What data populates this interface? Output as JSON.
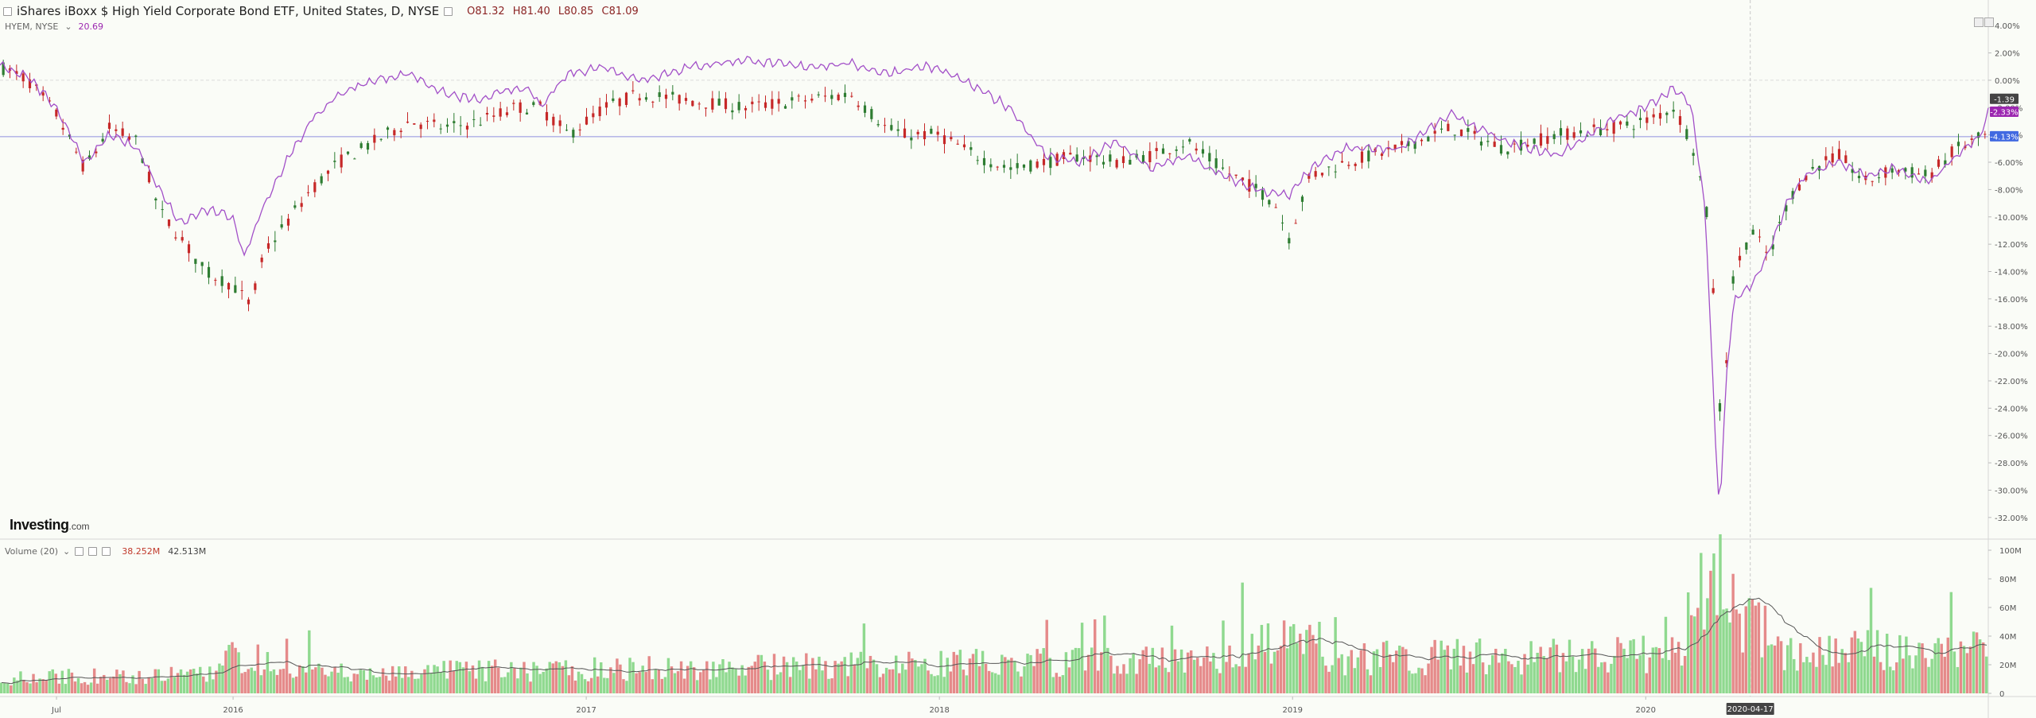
{
  "header": {
    "title": "iShares iBoxx $ High Yield Corporate Bond ETF, United States, D, NYSE",
    "open": "O81.32",
    "high": "H81.40",
    "low": "L80.85",
    "close": "C81.09"
  },
  "compare": {
    "symbol": "HYEM, NYSE",
    "value": "20.69"
  },
  "volume_legend": {
    "label": "Volume (20)",
    "value1": "38.252M",
    "value2": "42.513M"
  },
  "logo": {
    "brand": "Investing",
    "suffix": ".com"
  },
  "colors": {
    "up": "#2e7d32",
    "down": "#c62828",
    "compare_line": "#a24fc8",
    "vol_up": "#8fd98f",
    "vol_down": "#e58a8a",
    "vol_ma": "#555555",
    "ref_line": "#8f8fe0",
    "crosshair": "#c8c8c8"
  },
  "chart_data": [
    {
      "type": "line",
      "title": "iShares iBoxx $ High Yield Corporate Bond ETF",
      "y_scale": "percent change",
      "ylim": [
        -33,
        5
      ],
      "yticks": [
        "4.00%",
        "2.00%",
        "0.00%",
        "-2.00%",
        "-4.00%",
        "-6.00%",
        "-8.00%",
        "-10.00%",
        "-12.00%",
        "-14.00%",
        "-16.00%",
        "-18.00%",
        "-20.00%",
        "-22.00%",
        "-24.00%",
        "-26.00%",
        "-28.00%",
        "-30.00%",
        "-32.00%"
      ],
      "x_tick_labels": [
        "Jul",
        "2016",
        "2017",
        "2018",
        "2019",
        "2020"
      ],
      "x_tick_positions": [
        2015.5,
        2016.0,
        2017.0,
        2018.0,
        2019.0,
        2020.0
      ],
      "xlim": [
        2015.34,
        2020.97
      ],
      "crosshair_label": "2020-04-17",
      "crosshair_x": 2020.296,
      "badges": [
        {
          "label": "-1.39",
          "value": -1.39,
          "color": "#444444"
        },
        {
          "label": "-2.33%",
          "value": -2.33,
          "color": "#9c27b0"
        },
        {
          "label": "-4.13%",
          "value": -4.13,
          "color": "#4169e1"
        }
      ],
      "ref_line_value": -4.13,
      "series": [
        {
          "role": "candles",
          "x": [
            2015.34,
            2015.42,
            2015.5,
            2015.58,
            2015.65,
            2015.73,
            2015.79,
            2015.85,
            2015.92,
            2016.0,
            2016.05,
            2016.09,
            2016.15,
            2016.22,
            2016.3,
            2016.4,
            2016.5,
            2016.6,
            2016.7,
            2016.8,
            2016.87,
            2016.95,
            2017.05,
            2017.15,
            2017.3,
            2017.45,
            2017.6,
            2017.75,
            2017.85,
            2017.9,
            2018.0,
            2018.1,
            2018.2,
            2018.3,
            2018.4,
            2018.5,
            2018.6,
            2018.7,
            2018.8,
            2018.9,
            2018.95,
            2018.99,
            2019.05,
            2019.15,
            2019.3,
            2019.45,
            2019.6,
            2019.75,
            2019.9,
            2020.0,
            2020.08,
            2020.13,
            2020.17,
            2020.2,
            2020.21,
            2020.23,
            2020.25,
            2020.3,
            2020.35,
            2020.4,
            2020.45,
            2020.5,
            2020.55,
            2020.62,
            2020.7,
            2020.8,
            2020.88,
            2020.95,
            2020.97
          ],
          "values": [
            1.0,
            0.0,
            -2.5,
            -6.5,
            -3.5,
            -4.5,
            -9.5,
            -11.5,
            -14.0,
            -15.0,
            -16.5,
            -12.5,
            -10.5,
            -8.0,
            -6.0,
            -4.5,
            -3.0,
            -3.5,
            -3.0,
            -2.0,
            -2.0,
            -4.0,
            -2.0,
            -1.0,
            -1.5,
            -2.0,
            -1.5,
            -1.0,
            -3.5,
            -4.0,
            -4.0,
            -5.5,
            -6.5,
            -6.0,
            -5.5,
            -6.0,
            -5.5,
            -4.5,
            -6.5,
            -8.0,
            -9.0,
            -11.5,
            -7.0,
            -6.0,
            -5.0,
            -3.5,
            -5.0,
            -4.0,
            -3.5,
            -3.0,
            -2.0,
            -4.5,
            -9.0,
            -18.0,
            -24.0,
            -20.0,
            -14.0,
            -11.0,
            -13.0,
            -9.0,
            -7.0,
            -6.0,
            -5.5,
            -7.5,
            -6.5,
            -7.0,
            -5.0,
            -4.2,
            -4.0
          ]
        },
        {
          "name": "HYEM, NYSE",
          "role": "compare",
          "x": [
            2015.34,
            2015.42,
            2015.5,
            2015.58,
            2015.65,
            2015.73,
            2015.79,
            2015.85,
            2015.92,
            2016.0,
            2016.03,
            2016.08,
            2016.15,
            2016.22,
            2016.3,
            2016.4,
            2016.5,
            2016.6,
            2016.7,
            2016.8,
            2016.85,
            2016.87,
            2016.95,
            2017.05,
            2017.15,
            2017.3,
            2017.45,
            2017.6,
            2017.75,
            2017.85,
            2017.95,
            2018.0,
            2018.1,
            2018.2,
            2018.3,
            2018.4,
            2018.5,
            2018.6,
            2018.7,
            2018.8,
            2018.9,
            2018.99,
            2019.05,
            2019.15,
            2019.3,
            2019.45,
            2019.6,
            2019.75,
            2019.9,
            2020.0,
            2020.08,
            2020.13,
            2020.17,
            2020.2,
            2020.21,
            2020.23,
            2020.25,
            2020.3,
            2020.35,
            2020.4,
            2020.45,
            2020.5,
            2020.55,
            2020.62,
            2020.7,
            2020.8,
            2020.88,
            2020.95,
            2020.97
          ],
          "values": [
            1.0,
            0.2,
            -2.0,
            -6.0,
            -4.0,
            -5.0,
            -8.0,
            -10.5,
            -9.5,
            -10.0,
            -13.0,
            -9.5,
            -6.0,
            -3.0,
            -1.0,
            0.0,
            0.5,
            -1.0,
            -1.5,
            -0.5,
            -1.0,
            -2.0,
            0.5,
            1.0,
            0.0,
            1.0,
            1.5,
            1.0,
            1.2,
            0.5,
            1.0,
            0.8,
            -0.5,
            -2.0,
            -5.5,
            -6.0,
            -4.5,
            -6.5,
            -5.5,
            -7.0,
            -8.0,
            -8.5,
            -6.5,
            -5.0,
            -5.0,
            -2.5,
            -4.5,
            -5.5,
            -3.0,
            -2.0,
            -0.5,
            -2.0,
            -10.0,
            -28.0,
            -31.5,
            -21.0,
            -16.0,
            -15.0,
            -12.5,
            -9.0,
            -7.0,
            -6.5,
            -6.0,
            -7.0,
            -6.5,
            -7.5,
            -5.5,
            -4.0,
            -2.33
          ]
        }
      ]
    },
    {
      "type": "bar",
      "title": "Volume (20)",
      "ylim": [
        0,
        105
      ],
      "yticks": [
        "100M",
        "80M",
        "60M",
        "40M",
        "20M",
        "0"
      ],
      "series": [
        {
          "role": "volume",
          "unit": "M",
          "moving_average_period": 20
        }
      ]
    }
  ]
}
